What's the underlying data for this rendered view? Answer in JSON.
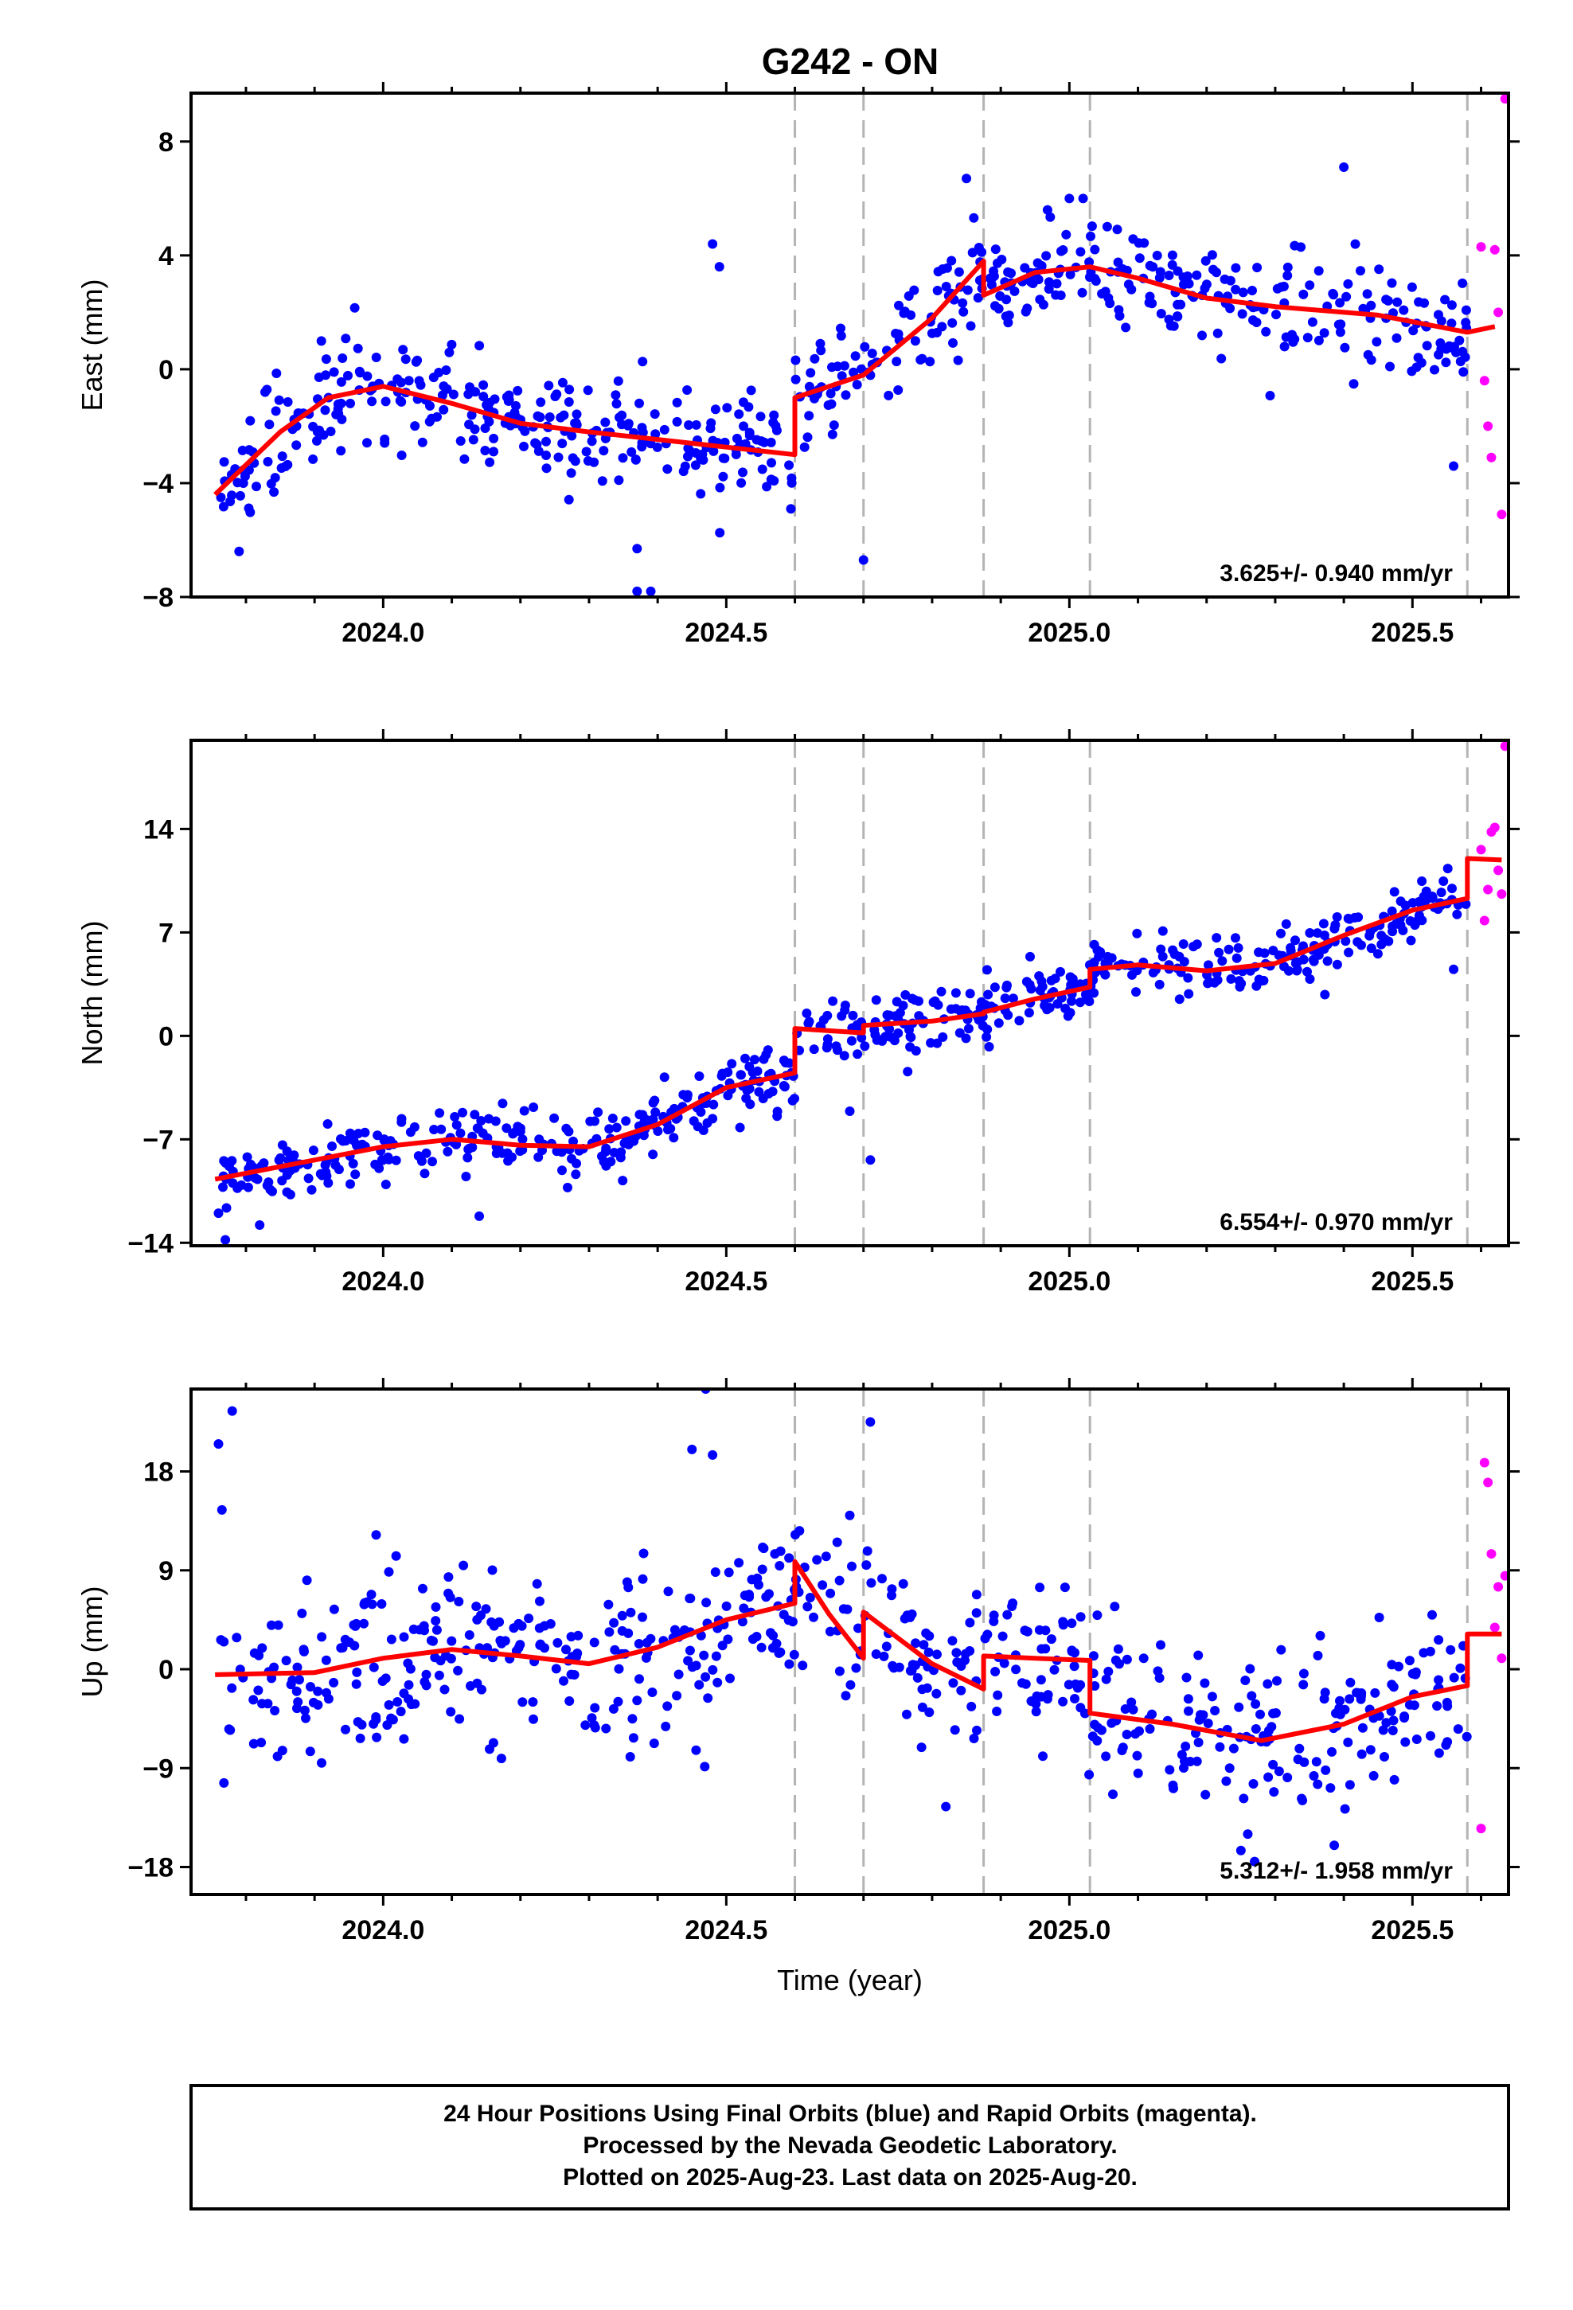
{
  "title": "G242 - ON",
  "footer": {
    "line1": "24 Hour Positions Using Final Orbits (blue) and Rapid Orbits (magenta).",
    "line2": "Processed by the Nevada Geodetic Laboratory.",
    "line3": "Plotted on 2025-Aug-23. Last data on 2025-Aug-20."
  },
  "colors": {
    "final_orbits": "#0000ff",
    "rapid_orbits": "#ff00ff",
    "model": "#ff0000",
    "event_lines": "#b4b4b4"
  },
  "chart_data": [
    {
      "type": "scatter",
      "panel": "east",
      "ylabel": "East (mm)",
      "xlabel": "",
      "xlim": [
        2023.72,
        2025.64
      ],
      "ylim": [
        -8,
        9.7
      ],
      "xticks": [
        "2024.0",
        "2024.5",
        "2025.0",
        "2025.5"
      ],
      "yticks": [
        "8",
        "4",
        "0",
        "-4",
        "-8"
      ],
      "ytick_values": [
        8,
        4,
        0,
        -4,
        -8
      ],
      "rate_label": "3.625+/- 0.940 mm/yr",
      "event_lines": [
        2024.6,
        2024.7,
        2024.875,
        2025.03,
        2025.58
      ],
      "model_line": {
        "x": [
          2023.755,
          2023.85,
          2023.92,
          2024.0,
          2024.1,
          2024.2,
          2024.3,
          2024.45,
          2024.6,
          2024.6,
          2024.7,
          2024.8,
          2024.875,
          2024.875,
          2024.95,
          2025.03,
          2025.1,
          2025.2,
          2025.3,
          2025.45,
          2025.58,
          2025.62
        ],
        "y": [
          -4.4,
          -2.2,
          -1.0,
          -0.6,
          -1.2,
          -1.9,
          -2.2,
          -2.6,
          -3.0,
          -1.0,
          -0.2,
          1.8,
          3.8,
          2.6,
          3.4,
          3.6,
          3.2,
          2.5,
          2.2,
          1.9,
          1.3,
          1.5
        ]
      },
      "final_orbits": {
        "trend": {
          "x": [
            2023.755,
            2023.85,
            2023.92,
            2024.0,
            2024.1,
            2024.2,
            2024.3,
            2024.45,
            2024.6,
            2024.6,
            2024.7,
            2024.8,
            2024.875,
            2024.875,
            2024.95,
            2025.03,
            2025.1,
            2025.2,
            2025.3,
            2025.45,
            2025.58
          ],
          "y": [
            -4.4,
            -2.2,
            -1.0,
            -0.6,
            -1.2,
            -1.9,
            -2.2,
            -2.6,
            -3.0,
            -1.0,
            -0.2,
            1.8,
            3.8,
            2.6,
            3.4,
            3.6,
            3.2,
            2.5,
            2.2,
            1.9,
            1.3
          ]
        },
        "x_range": [
          2023.76,
          2025.58
        ],
        "count": 620,
        "spread": 0.9,
        "outliers": {
          "x": [
            2024.37,
            2024.39,
            2024.48,
            2024.49,
            2024.7,
            2024.85,
            2025.0,
            2025.02,
            2025.4,
            2025.56,
            2023.79,
            2024.37
          ],
          "y": [
            -7.8,
            -7.8,
            4.4,
            3.6,
            -6.7,
            6.7,
            6.0,
            6.0,
            7.1,
            -3.4,
            -6.4,
            -6.3
          ]
        }
      },
      "rapid_orbits": {
        "x": [
          2025.6,
          2025.605,
          2025.61,
          2025.615,
          2025.62,
          2025.625,
          2025.63,
          2025.635
        ],
        "y": [
          4.3,
          -0.4,
          -2.0,
          -3.1,
          4.2,
          2.0,
          -5.1,
          9.5
        ]
      }
    },
    {
      "type": "scatter",
      "panel": "north",
      "ylabel": "North (mm)",
      "xlabel": "",
      "xlim": [
        2023.72,
        2025.64
      ],
      "ylim": [
        -14.2,
        20
      ],
      "xticks": [
        "2024.0",
        "2024.5",
        "2025.0",
        "2025.5"
      ],
      "yticks": [
        "14",
        "7",
        "0",
        "-7",
        "-14"
      ],
      "ytick_values": [
        14,
        7,
        0,
        -7,
        -14
      ],
      "rate_label": "6.554+/- 0.970 mm/yr",
      "event_lines": [
        2024.6,
        2024.7,
        2024.875,
        2025.03,
        2025.58
      ],
      "model_line": {
        "x": [
          2023.755,
          2023.9,
          2024.0,
          2024.1,
          2024.2,
          2024.3,
          2024.4,
          2024.5,
          2024.6,
          2024.6,
          2024.7,
          2024.7,
          2024.8,
          2024.875,
          2024.875,
          2024.95,
          2025.03,
          2025.03,
          2025.1,
          2025.2,
          2025.3,
          2025.4,
          2025.5,
          2025.58,
          2025.58,
          2025.63
        ],
        "y": [
          -9.7,
          -8.4,
          -7.5,
          -7.0,
          -7.4,
          -7.5,
          -6.0,
          -3.5,
          -2.5,
          0.5,
          0.2,
          0.7,
          1.0,
          1.5,
          1.6,
          2.5,
          3.3,
          4.5,
          4.8,
          4.4,
          4.9,
          6.8,
          8.5,
          9.3,
          12.0,
          11.9
        ]
      },
      "final_orbits": {
        "trend": {
          "x": [
            2023.755,
            2023.9,
            2024.0,
            2024.1,
            2024.2,
            2024.3,
            2024.4,
            2024.5,
            2024.6,
            2024.6,
            2024.7,
            2024.7,
            2024.8,
            2024.875,
            2024.875,
            2024.95,
            2025.03,
            2025.03,
            2025.1,
            2025.2,
            2025.3,
            2025.4,
            2025.5,
            2025.58
          ],
          "y": [
            -9.7,
            -8.4,
            -7.5,
            -7.0,
            -7.4,
            -7.5,
            -6.0,
            -3.5,
            -2.5,
            0.5,
            0.2,
            0.7,
            1.0,
            1.5,
            1.6,
            2.5,
            3.3,
            4.5,
            4.8,
            4.4,
            4.9,
            6.8,
            8.5,
            9.3
          ]
        },
        "x_range": [
          2023.76,
          2025.58
        ],
        "count": 620,
        "spread": 1.1,
        "outliers": {
          "x": [
            2023.76,
            2023.77,
            2023.82,
            2024.14,
            2024.68,
            2024.71,
            2025.56,
            2024.52,
            2024.48
          ],
          "y": [
            -12.0,
            -13.8,
            -12.8,
            -12.2,
            -5.1,
            -8.4,
            4.5,
            -6.2,
            -5.6
          ]
        }
      },
      "rapid_orbits": {
        "x": [
          2025.6,
          2025.605,
          2025.61,
          2025.615,
          2025.62,
          2025.625,
          2025.63,
          2025.635
        ],
        "y": [
          12.6,
          7.8,
          9.9,
          13.8,
          14.1,
          11.2,
          9.6,
          19.6
        ]
      }
    },
    {
      "type": "scatter",
      "panel": "up",
      "ylabel": "Up (mm)",
      "xlabel": "Time (year)",
      "xlim": [
        2023.72,
        2025.64
      ],
      "ylim": [
        -20.5,
        25.5
      ],
      "xticks": [
        "2024.0",
        "2024.5",
        "2025.0",
        "2025.5"
      ],
      "yticks": [
        "18",
        "9",
        "0",
        "-9",
        "-18"
      ],
      "ytick_values": [
        18,
        9,
        0,
        -9,
        -18
      ],
      "rate_label": "5.312+/- 1.958 mm/yr",
      "event_lines": [
        2024.6,
        2024.7,
        2024.875,
        2025.03,
        2025.58
      ],
      "model_line": {
        "x": [
          2023.755,
          2023.9,
          2024.0,
          2024.1,
          2024.2,
          2024.3,
          2024.4,
          2024.5,
          2024.6,
          2024.6,
          2024.65,
          2024.7,
          2024.7,
          2024.8,
          2024.875,
          2024.875,
          2024.95,
          2025.03,
          2025.03,
          2025.15,
          2025.28,
          2025.4,
          2025.5,
          2025.58,
          2025.58,
          2025.63
        ],
        "y": [
          -0.5,
          -0.3,
          1.0,
          1.8,
          1.2,
          0.5,
          2.0,
          4.5,
          6.0,
          9.8,
          5.0,
          1.0,
          5.2,
          0.5,
          -1.8,
          1.2,
          1.0,
          0.8,
          -4.0,
          -5.0,
          -6.5,
          -5.0,
          -2.5,
          -1.5,
          3.2,
          3.2
        ]
      },
      "final_orbits": {
        "trend": {
          "x": [
            2023.755,
            2023.9,
            2024.0,
            2024.1,
            2024.2,
            2024.3,
            2024.4,
            2024.5,
            2024.6,
            2024.6,
            2024.65,
            2024.7,
            2024.7,
            2024.8,
            2024.875,
            2024.875,
            2024.95,
            2025.03,
            2025.03,
            2025.15,
            2025.28,
            2025.4,
            2025.5,
            2025.58
          ],
          "y": [
            -0.5,
            -0.3,
            1.0,
            1.8,
            1.2,
            0.5,
            2.0,
            4.5,
            6.0,
            9.8,
            5.0,
            1.0,
            5.2,
            0.5,
            -1.8,
            1.2,
            1.0,
            0.8,
            -4.0,
            -5.0,
            -6.5,
            -5.0,
            -2.5,
            -1.5
          ]
        },
        "x_range": [
          2023.76,
          2025.58
        ],
        "count": 620,
        "spread": 3.8,
        "outliers": {
          "x": [
            2023.76,
            2023.765,
            2023.78,
            2024.47,
            2024.48,
            2024.45,
            2024.71,
            2024.68,
            2025.25,
            2025.27,
            2025.26,
            2024.82
          ],
          "y": [
            20.5,
            14.5,
            23.5,
            25.5,
            19.5,
            20.0,
            22.5,
            14.0,
            -16.5,
            -17.5,
            -15.0,
            -12.5
          ]
        }
      },
      "rapid_orbits": {
        "x": [
          2025.6,
          2025.605,
          2025.61,
          2025.615,
          2025.62,
          2025.625,
          2025.63,
          2025.635
        ],
        "y": [
          -14.5,
          18.8,
          17.0,
          10.5,
          3.8,
          7.5,
          1.0,
          8.5
        ]
      }
    }
  ]
}
